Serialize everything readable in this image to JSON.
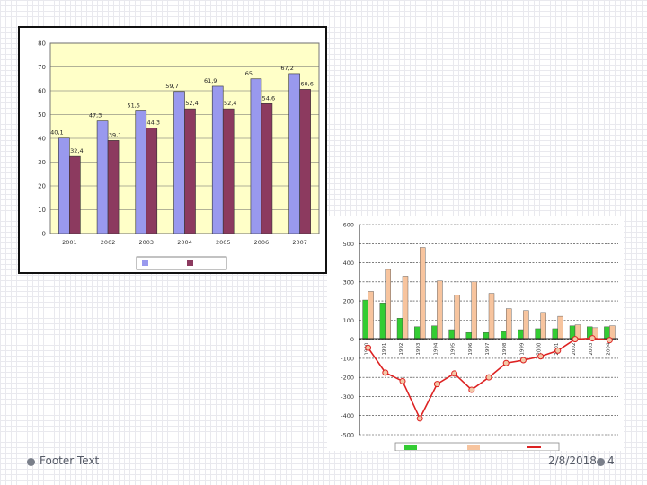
{
  "footer": {
    "text": "Footer Text",
    "date": "2/8/2018",
    "page": "4"
  },
  "colors": {
    "bar_a": "#9999ee",
    "bar_b": "#8c3a5f",
    "plot_bg": "#ffffc8",
    "green": "#33cc33",
    "peach": "#f7c49e",
    "line": "#dd2222"
  },
  "chart_data": [
    {
      "type": "bar",
      "title": "",
      "xlabel": "",
      "ylabel": "",
      "categories": [
        "2001",
        "2002",
        "2003",
        "2004",
        "2005",
        "2006",
        "2007"
      ],
      "series": [
        {
          "name": "",
          "values": [
            40.1,
            47.3,
            51.5,
            59.7,
            61.9,
            65,
            67.2
          ],
          "labels": [
            "40,1",
            "47,3",
            "51,5",
            "59,7",
            "61,9",
            "65",
            "67,2"
          ]
        },
        {
          "name": "",
          "values": [
            32.4,
            39.1,
            44.3,
            52.4,
            52.4,
            54.6,
            60.6
          ],
          "labels": [
            "32,4",
            "39,1",
            "44,3",
            "52,4",
            "52,4",
            "54,6",
            "60,6"
          ]
        }
      ],
      "ylim": [
        0,
        80
      ],
      "yticks": [
        "0",
        "10",
        "20",
        "30",
        "40",
        "50",
        "60",
        "70",
        "80"
      ],
      "grid": true,
      "legend": "bottom"
    },
    {
      "type": "bar",
      "title": "",
      "xlabel": "",
      "ylabel": "",
      "categories": [
        "1990",
        "1991",
        "1992",
        "1993",
        "1994",
        "1995",
        "1996",
        "1997",
        "1998",
        "1999",
        "2000",
        "2001",
        "2002",
        "2003",
        "2004"
      ],
      "series": [
        {
          "name": "",
          "kind": "bar",
          "values": [
            205,
            190,
            110,
            65,
            70,
            50,
            35,
            35,
            40,
            50,
            55,
            55,
            70,
            65,
            65
          ]
        },
        {
          "name": "",
          "kind": "bar",
          "values": [
            250,
            365,
            330,
            480,
            305,
            230,
            300,
            240,
            160,
            150,
            140,
            120,
            75,
            60,
            70
          ]
        },
        {
          "name": "",
          "kind": "line",
          "values": [
            -45,
            -175,
            -220,
            -415,
            -235,
            -180,
            -265,
            -200,
            -125,
            -110,
            -90,
            -60,
            0,
            5,
            -5
          ]
        }
      ],
      "ylim": [
        -500,
        600
      ],
      "yticks": [
        "-500",
        "-400",
        "-300",
        "-200",
        "-100",
        "0",
        "100",
        "200",
        "300",
        "400",
        "500",
        "600"
      ],
      "grid": true,
      "legend": "bottom"
    }
  ]
}
